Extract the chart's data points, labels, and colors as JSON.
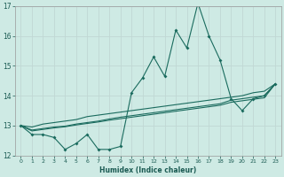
{
  "x": [
    0,
    1,
    2,
    3,
    4,
    5,
    6,
    7,
    8,
    9,
    10,
    11,
    12,
    13,
    14,
    15,
    16,
    17,
    18,
    19,
    20,
    21,
    22,
    23
  ],
  "line1": [
    13.0,
    12.7,
    12.7,
    12.6,
    12.2,
    12.4,
    12.7,
    12.2,
    12.2,
    12.3,
    14.1,
    14.6,
    15.3,
    14.65,
    16.2,
    15.6,
    17.1,
    16.0,
    15.2,
    13.9,
    13.5,
    13.9,
    14.0,
    14.4
  ],
  "line2": [
    13.0,
    12.95,
    13.05,
    13.1,
    13.15,
    13.2,
    13.3,
    13.35,
    13.4,
    13.45,
    13.5,
    13.55,
    13.6,
    13.65,
    13.7,
    13.75,
    13.8,
    13.85,
    13.9,
    13.95,
    14.0,
    14.1,
    14.15,
    14.4
  ],
  "line3": [
    13.0,
    12.85,
    12.9,
    12.95,
    12.98,
    13.05,
    13.1,
    13.15,
    13.22,
    13.28,
    13.33,
    13.38,
    13.43,
    13.48,
    13.53,
    13.58,
    13.63,
    13.68,
    13.73,
    13.85,
    13.9,
    13.95,
    14.0,
    14.4
  ],
  "line4": [
    13.0,
    12.82,
    12.87,
    12.92,
    12.96,
    13.02,
    13.07,
    13.12,
    13.18,
    13.23,
    13.28,
    13.33,
    13.38,
    13.43,
    13.48,
    13.53,
    13.58,
    13.63,
    13.68,
    13.78,
    13.83,
    13.88,
    13.93,
    14.4
  ],
  "line_color": "#1a6b5e",
  "bg_color": "#ceeae4",
  "grid_color_h": "#c0d8d4",
  "grid_color_v": "#c0d8d4",
  "xlabel": "Humidex (Indice chaleur)",
  "ylim": [
    12,
    17
  ],
  "xlim": [
    -0.5,
    23.5
  ],
  "yticks": [
    12,
    13,
    14,
    15,
    16,
    17
  ],
  "xticks": [
    0,
    1,
    2,
    3,
    4,
    5,
    6,
    7,
    8,
    9,
    10,
    11,
    12,
    13,
    14,
    15,
    16,
    17,
    18,
    19,
    20,
    21,
    22,
    23
  ]
}
